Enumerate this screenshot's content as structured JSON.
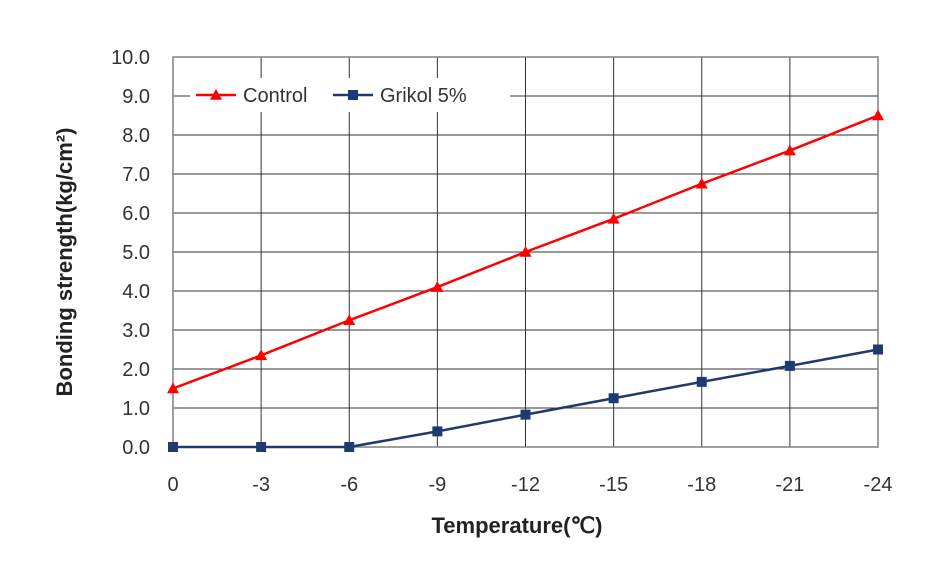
{
  "chart_data": {
    "type": "line",
    "title": "",
    "xlabel": "Temperature(℃)",
    "ylabel": "Bonding strength(kg/cm²)",
    "categories": [
      "0",
      "-3",
      "-6",
      "-9",
      "-12",
      "-15",
      "-18",
      "-21",
      "-24"
    ],
    "ylim": [
      0,
      10
    ],
    "yticks": [
      "0.0",
      "1.0",
      "2.0",
      "3.0",
      "4.0",
      "5.0",
      "6.0",
      "7.0",
      "8.0",
      "9.0",
      "10.0"
    ],
    "grid": true,
    "legend_position": "top-left",
    "series": [
      {
        "name": "Control",
        "marker": "triangle",
        "color": "#ff0000",
        "values": [
          1.5,
          2.35,
          3.25,
          4.1,
          5.0,
          5.85,
          6.75,
          7.6,
          8.5
        ]
      },
      {
        "name": "Grikol 5%",
        "marker": "square",
        "color": "#1f3a6e",
        "values": [
          0.0,
          0.0,
          0.0,
          0.4,
          0.83,
          1.25,
          1.67,
          2.08,
          2.5
        ]
      }
    ]
  }
}
